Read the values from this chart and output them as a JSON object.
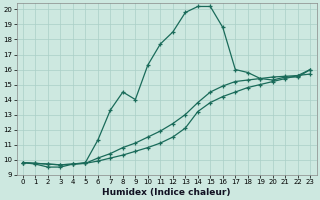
{
  "xlabel": "Humidex (Indice chaleur)",
  "ylabel": "",
  "bg_color": "#cde8e0",
  "line_color": "#1a6b5a",
  "grid_color": "#aacfc7",
  "xlim": [
    -0.5,
    23.5
  ],
  "ylim": [
    9,
    20.4
  ],
  "yticks": [
    9,
    10,
    11,
    12,
    13,
    14,
    15,
    16,
    17,
    18,
    19,
    20
  ],
  "xticks": [
    0,
    1,
    2,
    3,
    4,
    5,
    6,
    7,
    8,
    9,
    10,
    11,
    12,
    13,
    14,
    15,
    16,
    17,
    18,
    19,
    20,
    21,
    22,
    23
  ],
  "line1_x": [
    0,
    1,
    2,
    3,
    4,
    5,
    6,
    7,
    8,
    9,
    10,
    11,
    12,
    13,
    14,
    15,
    16,
    17,
    18,
    19,
    20,
    21,
    22,
    23
  ],
  "line1_y": [
    9.8,
    9.7,
    9.5,
    9.5,
    9.7,
    9.8,
    11.3,
    13.3,
    14.5,
    14.0,
    16.3,
    17.7,
    18.5,
    19.8,
    20.2,
    20.2,
    18.8,
    16.0,
    15.8,
    15.4,
    15.3,
    15.5,
    15.5,
    16.0
  ],
  "line2_x": [
    0,
    1,
    2,
    3,
    4,
    5,
    6,
    7,
    8,
    9,
    10,
    11,
    12,
    13,
    14,
    15,
    16,
    17,
    18,
    19,
    20,
    21,
    22,
    23
  ],
  "line2_y": [
    9.8,
    9.75,
    9.7,
    9.65,
    9.7,
    9.75,
    9.9,
    10.1,
    10.3,
    10.55,
    10.8,
    11.1,
    11.5,
    12.1,
    13.2,
    13.8,
    14.2,
    14.5,
    14.8,
    15.0,
    15.2,
    15.4,
    15.6,
    16.0
  ],
  "line3_x": [
    0,
    1,
    2,
    3,
    4,
    5,
    6,
    7,
    8,
    9,
    10,
    11,
    12,
    13,
    14,
    15,
    16,
    17,
    18,
    19,
    20,
    21,
    22,
    23
  ],
  "line3_y": [
    9.8,
    9.75,
    9.7,
    9.65,
    9.7,
    9.75,
    10.1,
    10.4,
    10.8,
    11.1,
    11.5,
    11.9,
    12.4,
    13.0,
    13.8,
    14.5,
    14.9,
    15.2,
    15.3,
    15.4,
    15.5,
    15.55,
    15.6,
    15.7
  ]
}
